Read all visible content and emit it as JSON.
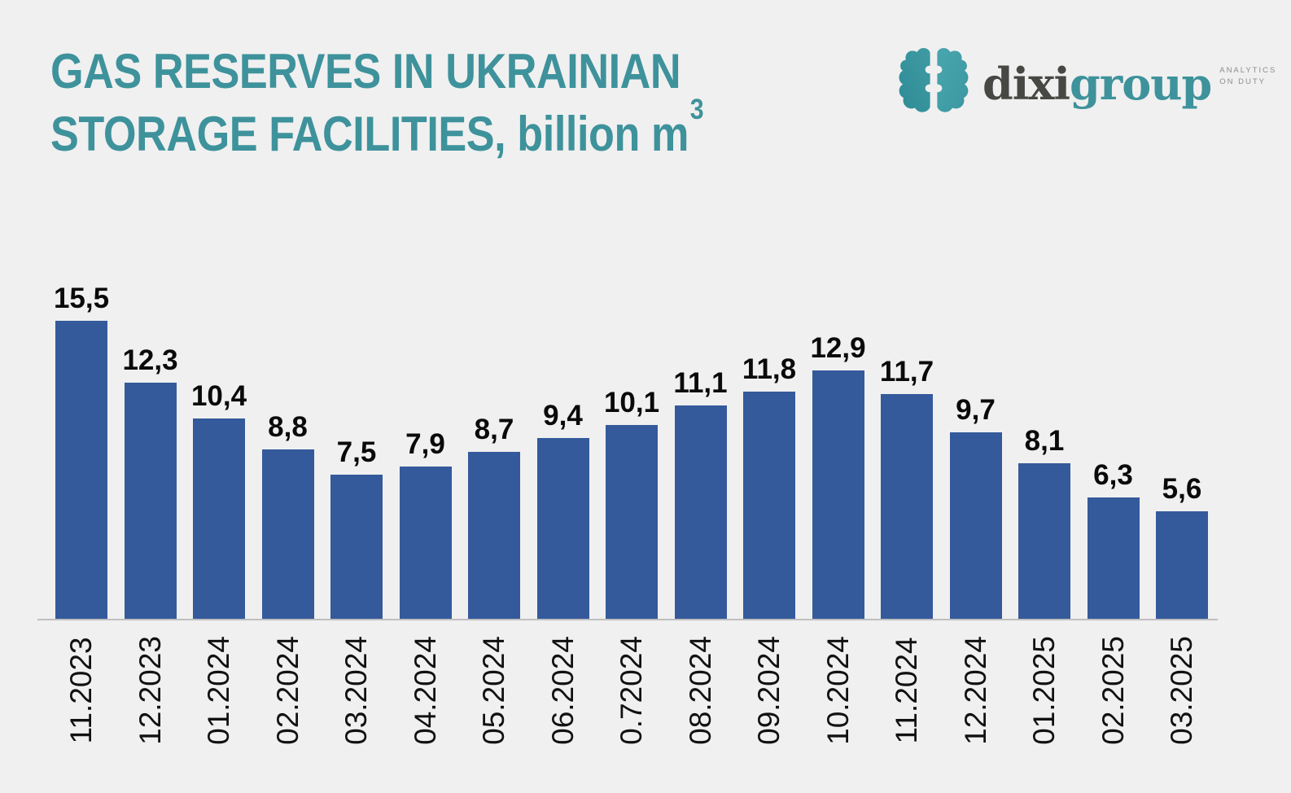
{
  "header": {
    "title_line1": "GAS RESERVES IN UKRAINIAN",
    "title_line2": "STORAGE FACILITIES, billion m",
    "title_superscript": "3"
  },
  "logo": {
    "icon": "brain-icon",
    "wordmark_dark": "dixi",
    "wordmark_teal": "group",
    "tagline_line1": "ANALYTICS",
    "tagline_line2": "ON DUTY"
  },
  "colors": {
    "background": "#F0F0F0",
    "bar": "#345A9B",
    "title": "#3E929B",
    "axis_line": "#BFBFBF",
    "value_label": "#0A0A0A",
    "tick_label": "#111111",
    "wordmark_dark": "#474744",
    "wordmark_teal": "#3E929B",
    "tagline": "#8C8C8C"
  },
  "chart_data": {
    "type": "bar",
    "title": "GAS RESERVES IN UKRAINIAN STORAGE FACILITIES, billion m3",
    "categories": [
      "11.2023",
      "12.2023",
      "01.2024",
      "02.2024",
      "03.2024",
      "04.2024",
      "05.2024",
      "06.2024",
      "0.72024",
      "08.2024",
      "09.2024",
      "10.2024",
      "11.2024",
      "12.2024",
      "01.2025",
      "02.2025",
      "03.2025"
    ],
    "values": [
      15.5,
      12.3,
      10.4,
      8.8,
      7.5,
      7.9,
      8.7,
      9.4,
      10.1,
      11.1,
      11.8,
      12.9,
      11.7,
      9.7,
      8.1,
      6.3,
      5.6
    ],
    "value_labels": [
      "15,5",
      "12,3",
      "10,4",
      "8,8",
      "7,5",
      "7,9",
      "8,7",
      "9,4",
      "10,1",
      "11,1",
      "11,8",
      "12,9",
      "11,7",
      "9,7",
      "8,1",
      "6,3",
      "5,6"
    ],
    "xlabel": "",
    "ylabel": "",
    "ylim": [
      0,
      16
    ],
    "grid": false,
    "legend": "none",
    "data_labels": true,
    "x_tick_rotation": 90
  }
}
